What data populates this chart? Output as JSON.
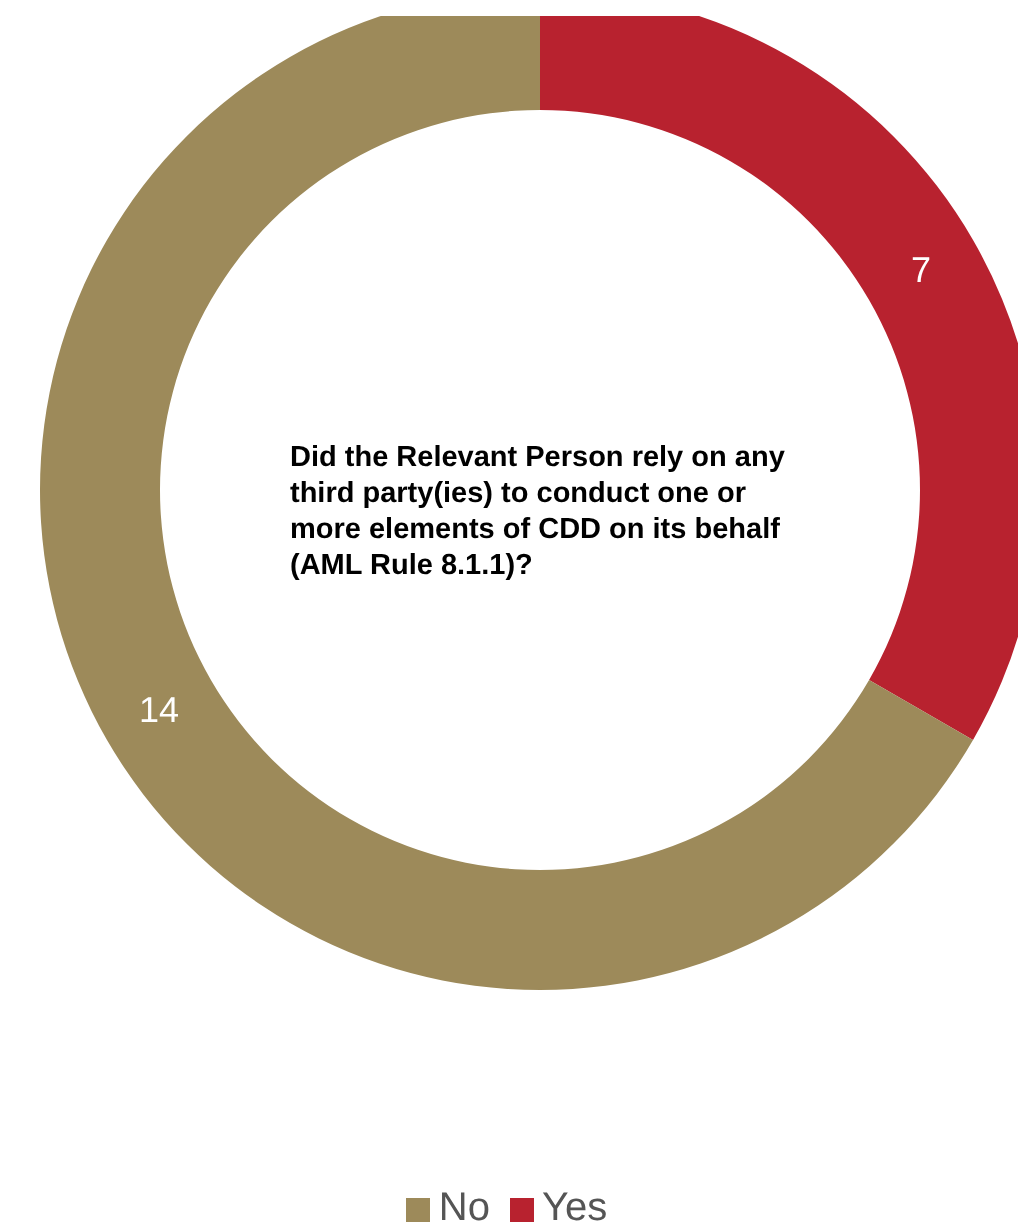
{
  "chart_data": {
    "type": "donut",
    "title": "Did the Relevant Person rely on any third party(ies) to conduct one or more elements of CDD on its behalf (AML Rule 8.1.1)?",
    "categories": [
      "Yes",
      "No"
    ],
    "values": [
      7,
      14
    ],
    "colors": [
      "#b8222f",
      "#9d8a5a"
    ],
    "data_labels": true,
    "legend": "bottom"
  }
}
